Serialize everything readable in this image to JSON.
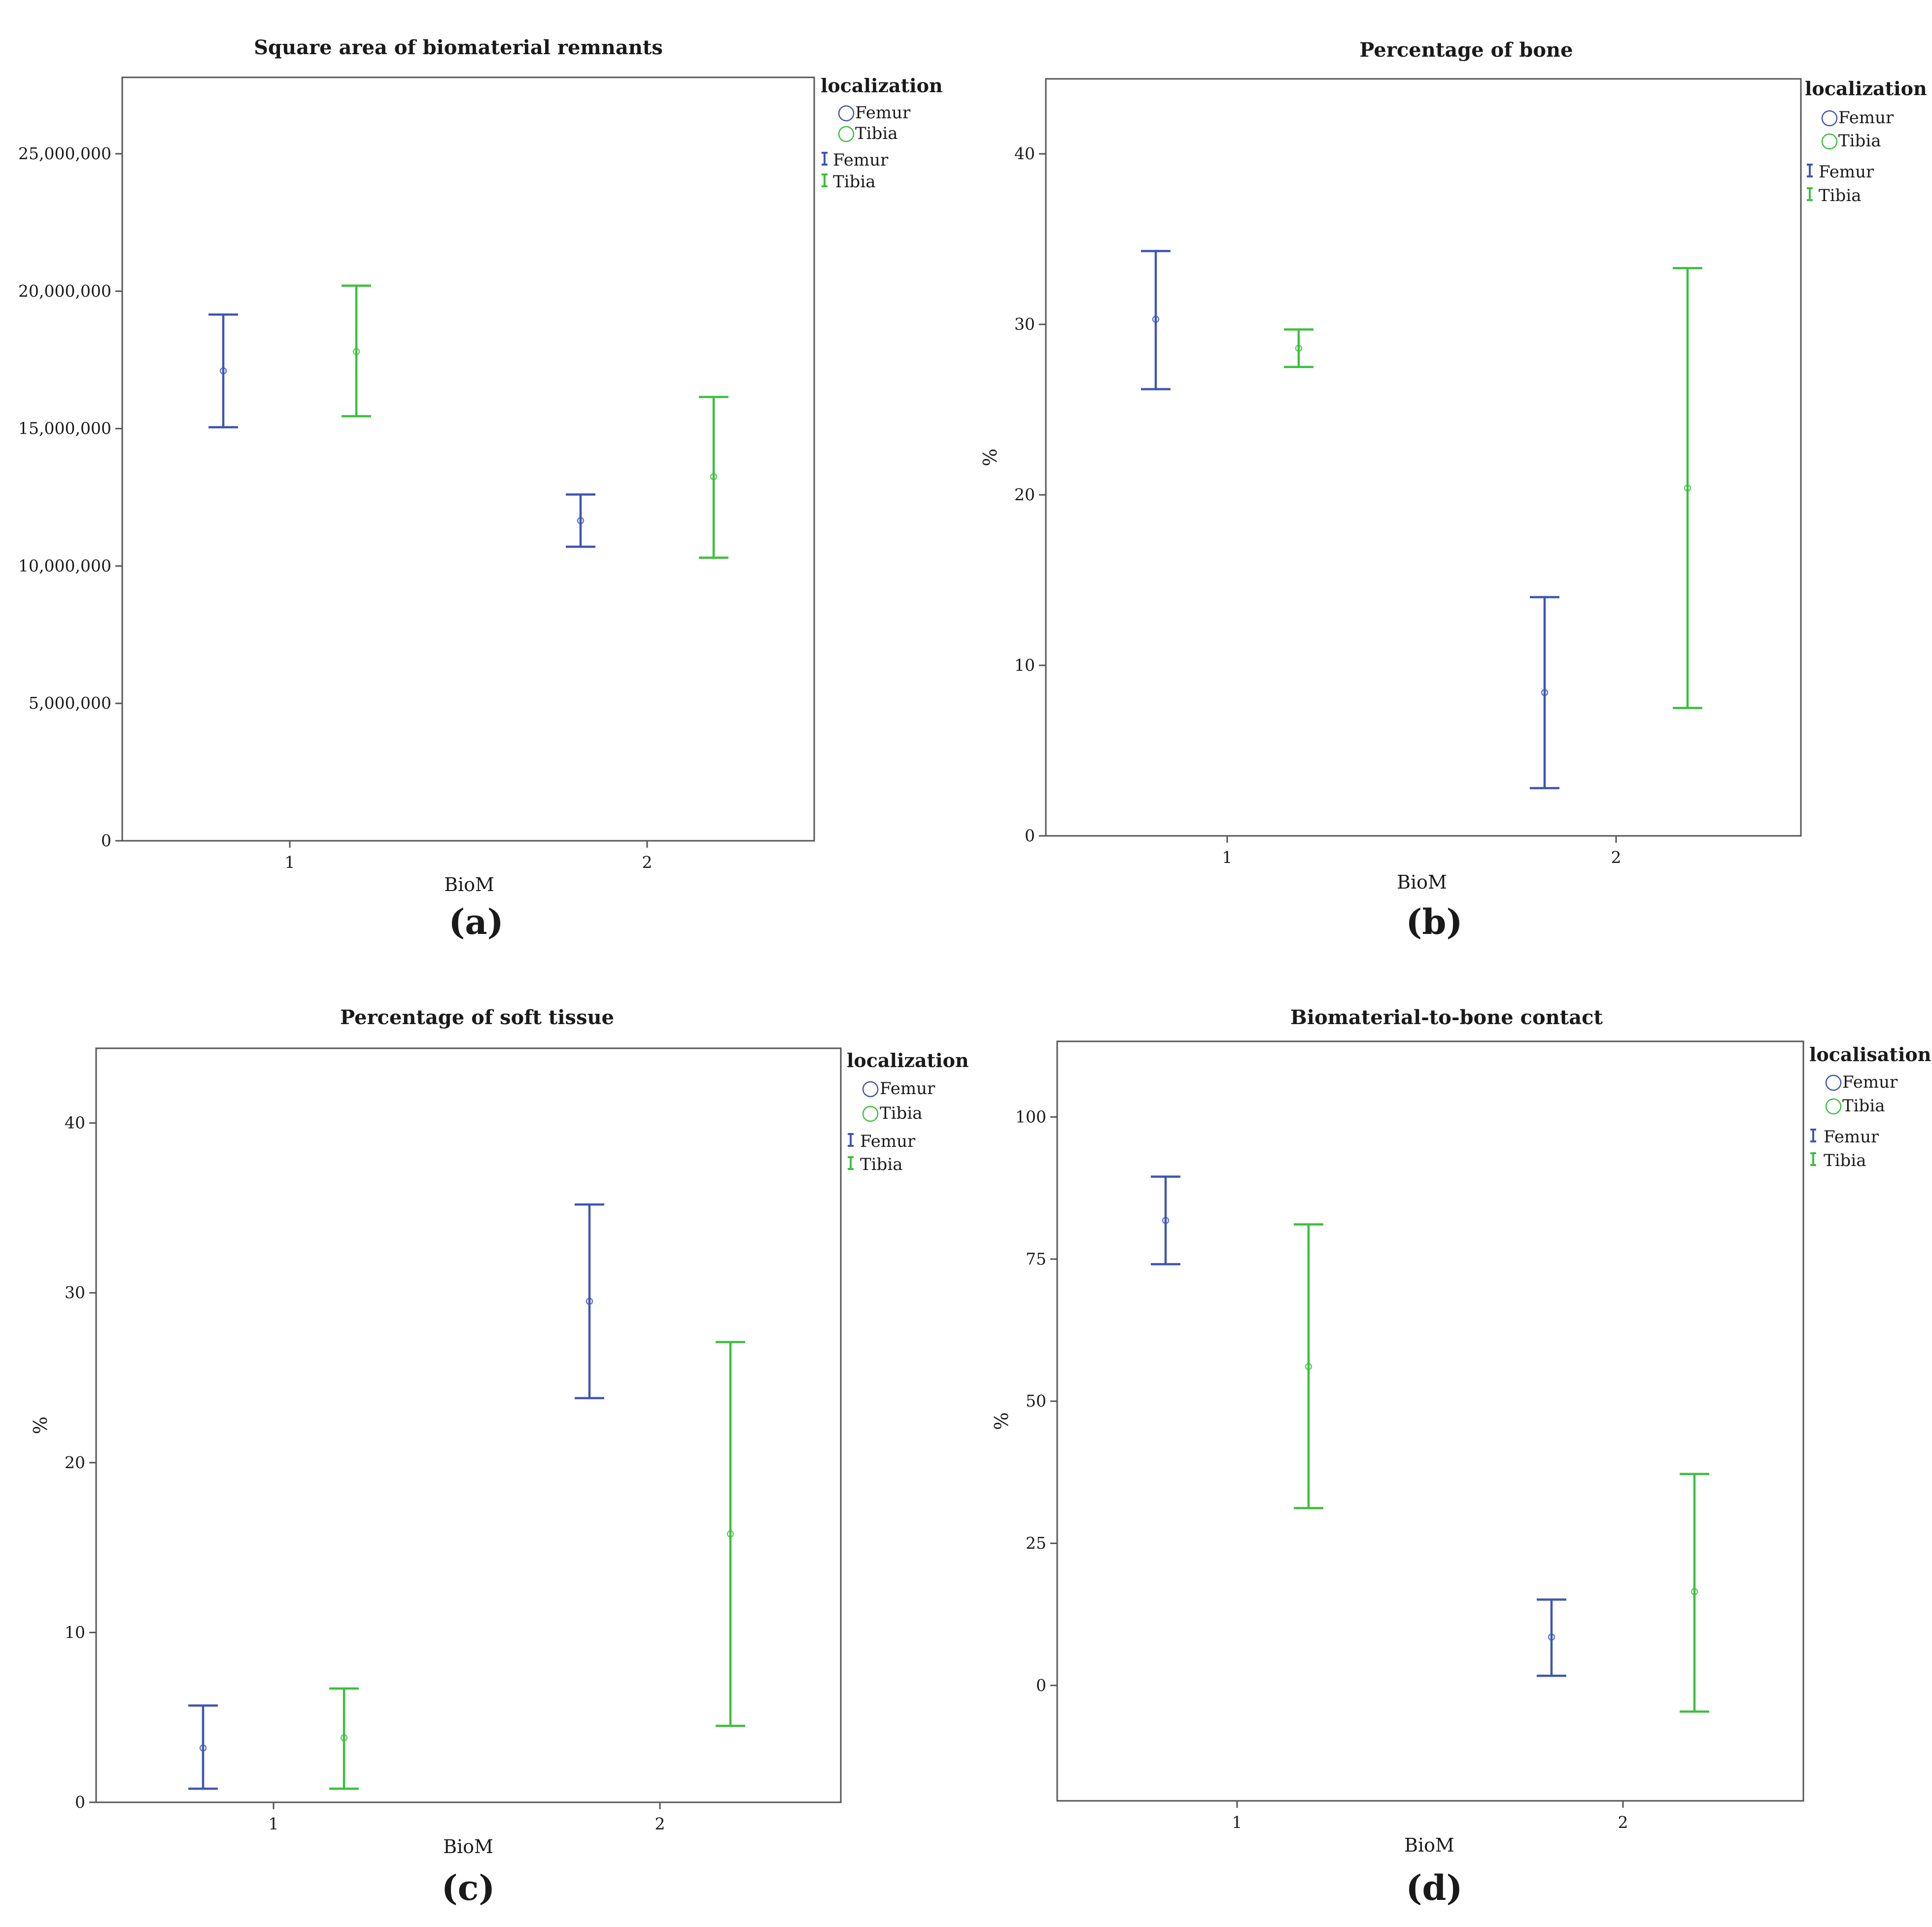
{
  "chart_data": [
    {
      "id": "a",
      "type": "errorbar",
      "panel_label": "(a)",
      "title": "Square area of biomaterial remnants",
      "xlabel": "BioM",
      "ylabel": "",
      "categories": [
        "1",
        "2"
      ],
      "ylim": [
        0,
        27780000
      ],
      "yticks": [
        0,
        5000000,
        10000000,
        15000000,
        20000000,
        25000000
      ],
      "ytick_labels": [
        "0",
        "5,000,000",
        "10,000,000",
        "15,000,000",
        "20,000,000",
        "25,000,000"
      ],
      "legend_title": "localization",
      "series": [
        {
          "name": "Femur",
          "color": "#3f55b3",
          "mean": [
            17100000,
            11650000
          ],
          "low": [
            15050000,
            10700000
          ],
          "high": [
            19150000,
            12600000
          ]
        },
        {
          "name": "Tibia",
          "color": "#3cbf3c",
          "mean": [
            17800000,
            13250000
          ],
          "low": [
            15450000,
            10300000
          ],
          "high": [
            20200000,
            16150000
          ]
        }
      ]
    },
    {
      "id": "b",
      "type": "errorbar",
      "panel_label": "(b)",
      "title": "Percentage of bone",
      "xlabel": "BioM",
      "ylabel": "%",
      "categories": [
        "1",
        "2"
      ],
      "ylim": [
        0,
        44.4
      ],
      "yticks": [
        0,
        10,
        20,
        30,
        40
      ],
      "ytick_labels": [
        "0",
        "10",
        "20",
        "30",
        "40"
      ],
      "legend_title": "localization",
      "series": [
        {
          "name": "Femur",
          "color": "#3f55b3",
          "mean": [
            30.3,
            8.4
          ],
          "low": [
            26.2,
            2.8
          ],
          "high": [
            34.3,
            14.0
          ]
        },
        {
          "name": "Tibia",
          "color": "#3cbf3c",
          "mean": [
            28.6,
            20.4
          ],
          "low": [
            27.5,
            7.5
          ],
          "high": [
            29.7,
            33.3
          ]
        }
      ]
    },
    {
      "id": "c",
      "type": "errorbar",
      "panel_label": "(c)",
      "title": "Percentage of soft tissue",
      "xlabel": "BioM",
      "ylabel": "%",
      "categories": [
        "1",
        "2"
      ],
      "ylim": [
        0,
        44.4
      ],
      "yticks": [
        0,
        10,
        20,
        30,
        40
      ],
      "ytick_labels": [
        "0",
        "10",
        "20",
        "30",
        "40"
      ],
      "legend_title": "localization",
      "series": [
        {
          "name": "Femur",
          "color": "#3f55b3",
          "mean": [
            3.2,
            29.5
          ],
          "low": [
            0.8,
            23.8
          ],
          "high": [
            5.7,
            35.2
          ]
        },
        {
          "name": "Tibia",
          "color": "#3cbf3c",
          "mean": [
            3.8,
            15.8
          ],
          "low": [
            0.8,
            4.5
          ],
          "high": [
            6.7,
            27.1
          ]
        }
      ]
    },
    {
      "id": "d",
      "type": "errorbar",
      "panel_label": "(d)",
      "title": "Biomaterial-to-bone contact",
      "xlabel": "BioM",
      "ylabel": "%",
      "categories": [
        "1",
        "2"
      ],
      "ylim": [
        -20.3,
        113.3
      ],
      "yticks": [
        0,
        25,
        50,
        75,
        100
      ],
      "ytick_labels": [
        "0",
        "25",
        "50",
        "75",
        "100"
      ],
      "legend_title": "localisation",
      "series": [
        {
          "name": "Femur",
          "color": "#3f55b3",
          "mean": [
            81.8,
            8.5
          ],
          "low": [
            74.1,
            1.7
          ],
          "high": [
            89.5,
            15.1
          ]
        },
        {
          "name": "Tibia",
          "color": "#3cbf3c",
          "mean": [
            56.1,
            16.5
          ],
          "low": [
            31.2,
            -4.6
          ],
          "high": [
            81.1,
            37.2
          ]
        }
      ]
    }
  ]
}
